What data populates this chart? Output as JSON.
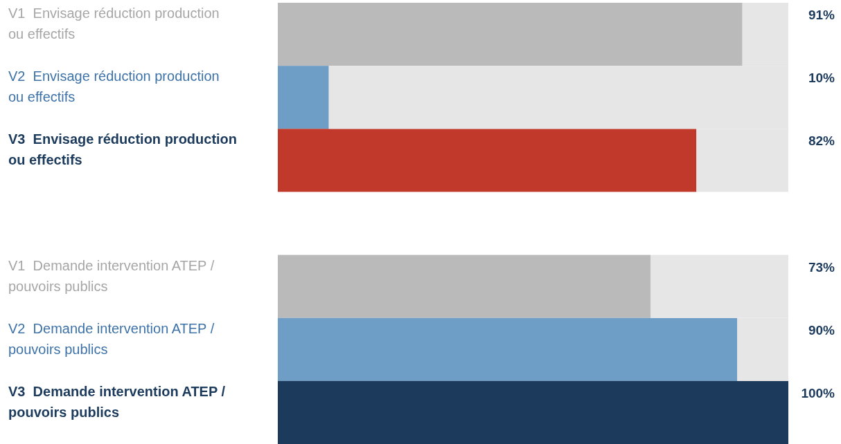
{
  "chart_data": {
    "type": "bar",
    "orientation": "horizontal",
    "stacked": true,
    "tick_labels": "y",
    "xlim": [
      0,
      100
    ],
    "categories": [
      "V1  Envisage réduction production ou effectifs",
      "V2  Envisage réduction production ou effectifs",
      "V3  Envisage réduction production ou effectifs",
      null,
      "V1  Demande intervention ATEP / pouvoirs publics",
      "V2  Demande intervention ATEP / pouvoirs publics",
      "V3  Demande intervention ATEP / pouvoirs publics"
    ],
    "series": [
      {
        "colors": [
          "#bababa",
          "#6e9ec6",
          "#c0392b",
          null,
          "#bababa",
          "#6e9ec6",
          "#1b3a5c"
        ],
        "values": [
          91,
          10,
          82,
          null,
          73,
          90,
          100
        ],
        "value_labels": [
          "91%",
          "10%",
          "82%",
          null,
          "73%",
          "90%",
          "100%"
        ]
      },
      {
        "color": "#e6e6e6",
        "values": [
          9,
          90,
          18,
          null,
          27,
          10,
          0
        ]
      }
    ]
  }
}
